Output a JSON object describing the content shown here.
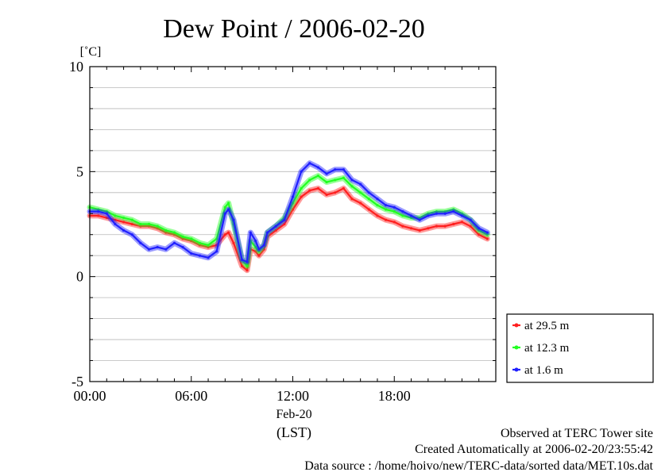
{
  "chart_data": {
    "type": "line",
    "title": "Dew Point / 2006-02-20",
    "ylabel": "[˚C]",
    "ylim": [
      -5,
      10
    ],
    "yticks": [
      10,
      5,
      0,
      -5
    ],
    "xlim": [
      0,
      24
    ],
    "xticks": [
      {
        "x": 0,
        "label": "00:00"
      },
      {
        "x": 6,
        "label": "06:00"
      },
      {
        "x": 12,
        "label": "12:00"
      },
      {
        "x": 18,
        "label": "18:00"
      }
    ],
    "date_label": "Feb-20",
    "xlabel": "(LST)",
    "grid": true,
    "legend_position": "right",
    "series": [
      {
        "name": "at 29.5 m",
        "color": "#ff2020",
        "x": [
          0,
          0.5,
          1,
          1.5,
          2,
          2.5,
          3,
          3.5,
          4,
          4.5,
          5,
          5.5,
          6,
          6.5,
          7,
          7.5,
          8,
          8.2,
          8.5,
          9,
          9.3,
          9.5,
          9.8,
          10,
          10.3,
          10.5,
          11,
          11.5,
          12,
          12.5,
          13,
          13.5,
          14,
          14.5,
          15,
          15.5,
          16,
          16.5,
          17,
          17.5,
          18,
          18.5,
          19,
          19.5,
          20,
          20.5,
          21,
          21.5,
          22,
          22.5,
          23,
          23.5
        ],
        "values": [
          2.9,
          2.9,
          2.8,
          2.7,
          2.6,
          2.5,
          2.4,
          2.4,
          2.3,
          2.1,
          2.0,
          1.8,
          1.7,
          1.5,
          1.4,
          1.5,
          2.0,
          2.1,
          1.6,
          0.5,
          0.3,
          1.3,
          1.2,
          1.0,
          1.3,
          1.9,
          2.2,
          2.5,
          3.2,
          3.8,
          4.1,
          4.2,
          3.9,
          4.0,
          4.2,
          3.7,
          3.5,
          3.2,
          2.9,
          2.7,
          2.6,
          2.4,
          2.3,
          2.2,
          2.3,
          2.4,
          2.4,
          2.5,
          2.6,
          2.4,
          2.0,
          1.8
        ]
      },
      {
        "name": "at 12.3 m",
        "color": "#20ff20",
        "x": [
          0,
          0.5,
          1,
          1.5,
          2,
          2.5,
          3,
          3.5,
          4,
          4.5,
          5,
          5.5,
          6,
          6.5,
          7,
          7.5,
          8,
          8.2,
          8.5,
          9,
          9.3,
          9.5,
          9.8,
          10,
          10.3,
          10.5,
          11,
          11.5,
          12,
          12.5,
          13,
          13.5,
          14,
          14.5,
          15,
          15.5,
          16,
          16.5,
          17,
          17.5,
          18,
          18.5,
          19,
          19.5,
          20,
          20.5,
          21,
          21.5,
          22,
          22.5,
          23,
          23.5
        ],
        "values": [
          3.3,
          3.2,
          3.1,
          2.9,
          2.8,
          2.7,
          2.5,
          2.5,
          2.4,
          2.2,
          2.1,
          1.9,
          1.8,
          1.6,
          1.5,
          1.8,
          3.3,
          3.5,
          2.5,
          0.8,
          0.5,
          1.7,
          1.4,
          1.2,
          1.5,
          2.1,
          2.4,
          2.8,
          3.5,
          4.2,
          4.6,
          4.8,
          4.5,
          4.6,
          4.7,
          4.3,
          4.0,
          3.7,
          3.4,
          3.2,
          3.1,
          2.9,
          2.8,
          2.8,
          3.0,
          3.1,
          3.1,
          3.2,
          3.0,
          2.7,
          2.2,
          2.0
        ]
      },
      {
        "name": "at 1.6 m",
        "color": "#2020ff",
        "x": [
          0,
          0.5,
          1,
          1.5,
          2,
          2.5,
          3,
          3.5,
          4,
          4.5,
          5,
          5.5,
          6,
          6.5,
          7,
          7.5,
          8,
          8.2,
          8.5,
          9,
          9.3,
          9.5,
          9.8,
          10,
          10.3,
          10.5,
          11,
          11.5,
          12,
          12.5,
          13,
          13.5,
          14,
          14.5,
          15,
          15.5,
          16,
          16.5,
          17,
          17.5,
          18,
          18.5,
          19,
          19.5,
          20,
          20.5,
          21,
          21.5,
          22,
          22.5,
          23,
          23.5
        ],
        "values": [
          3.1,
          3.1,
          3.0,
          2.5,
          2.2,
          2.0,
          1.6,
          1.3,
          1.4,
          1.3,
          1.6,
          1.4,
          1.1,
          1.0,
          0.9,
          1.2,
          3.0,
          3.2,
          2.7,
          0.8,
          0.7,
          2.1,
          1.7,
          1.3,
          1.5,
          2.1,
          2.4,
          2.7,
          3.8,
          5.0,
          5.4,
          5.2,
          4.9,
          5.1,
          5.1,
          4.6,
          4.4,
          4.0,
          3.7,
          3.4,
          3.3,
          3.1,
          2.9,
          2.7,
          2.9,
          3.0,
          3.0,
          3.1,
          2.9,
          2.7,
          2.3,
          2.1
        ]
      }
    ],
    "footer": [
      "Observed at TERC Tower site",
      "Created Automatically at 2006-02-20/23:55:42",
      "Data source : /home/hoivo/new/TERC-data/sorted  data/MET.10s.dat"
    ]
  }
}
